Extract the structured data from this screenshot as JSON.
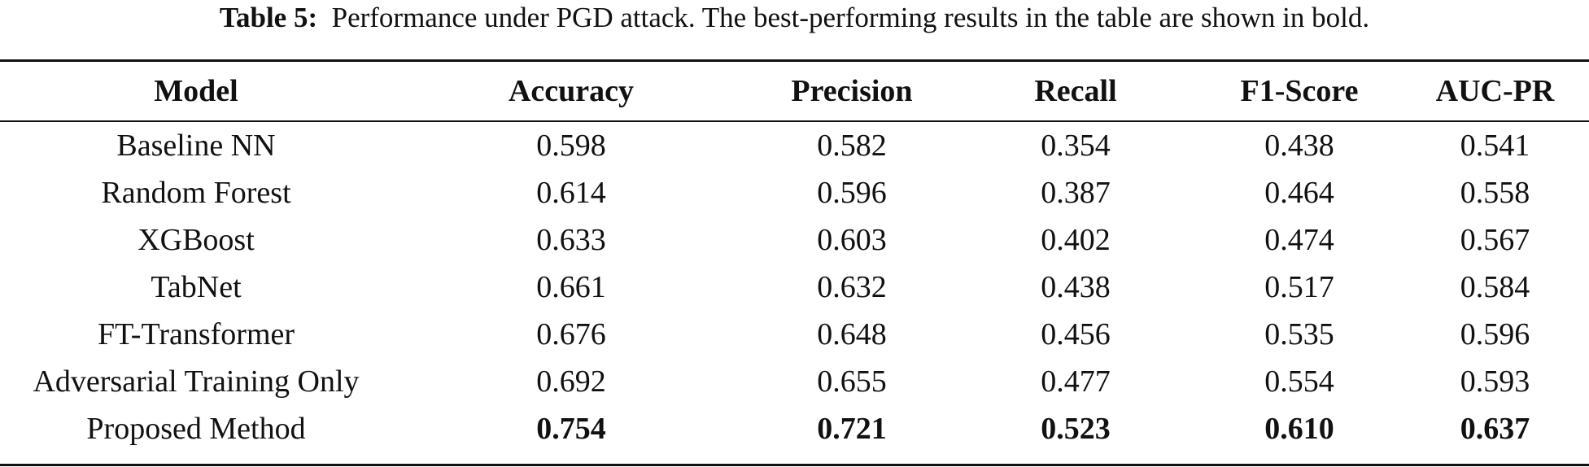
{
  "caption": {
    "label": "Table 5:",
    "text": "Performance under PGD attack. The best-performing results in the table are shown in bold."
  },
  "table": {
    "headers": [
      "Model",
      "Accuracy",
      "Precision",
      "Recall",
      "F1-Score",
      "AUC-PR"
    ],
    "rows": [
      {
        "model": "Baseline NN",
        "accuracy": "0.598",
        "precision": "0.582",
        "recall": "0.354",
        "f1": "0.438",
        "auc_pr": "0.541"
      },
      {
        "model": "Random Forest",
        "accuracy": "0.614",
        "precision": "0.596",
        "recall": "0.387",
        "f1": "0.464",
        "auc_pr": "0.558"
      },
      {
        "model": "XGBoost",
        "accuracy": "0.633",
        "precision": "0.603",
        "recall": "0.402",
        "f1": "0.474",
        "auc_pr": "0.567"
      },
      {
        "model": "TabNet",
        "accuracy": "0.661",
        "precision": "0.632",
        "recall": "0.438",
        "f1": "0.517",
        "auc_pr": "0.584"
      },
      {
        "model": "FT-Transformer",
        "accuracy": "0.676",
        "precision": "0.648",
        "recall": "0.456",
        "f1": "0.535",
        "auc_pr": "0.596"
      },
      {
        "model": "Adversarial Training Only",
        "accuracy": "0.692",
        "precision": "0.655",
        "recall": "0.477",
        "f1": "0.554",
        "auc_pr": "0.593"
      },
      {
        "model": "Proposed Method",
        "accuracy": "0.754",
        "precision": "0.721",
        "recall": "0.523",
        "f1": "0.610",
        "auc_pr": "0.637"
      }
    ],
    "bold_row": "Proposed Method"
  }
}
